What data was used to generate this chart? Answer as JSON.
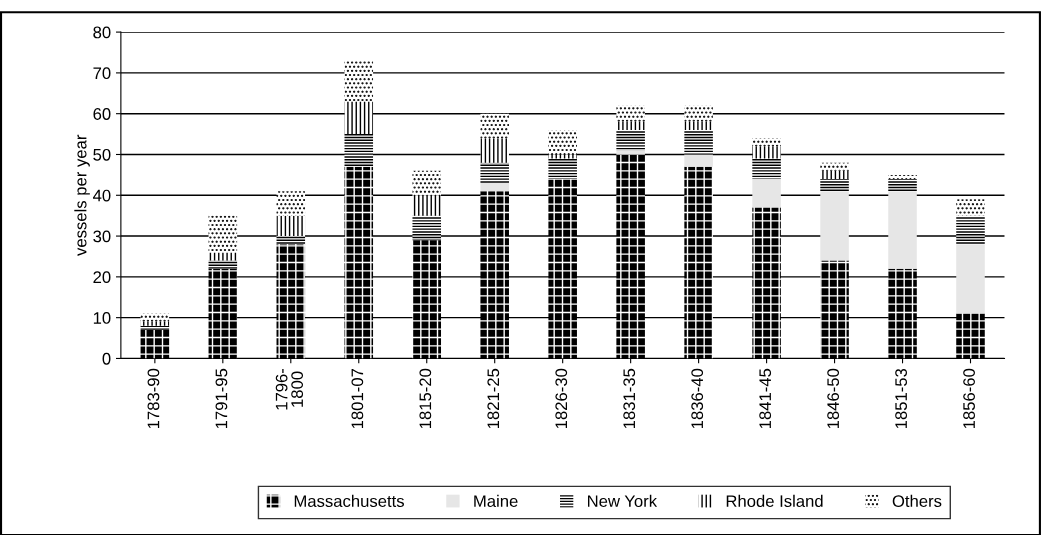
{
  "chart_data": {
    "type": "bar",
    "stacked": true,
    "ylabel": "vessels per year",
    "categories": [
      "1783-90",
      "1791-95",
      "1796-\n1800",
      "1801-07",
      "1815-20",
      "1821-25",
      "1826-30",
      "1831-35",
      "1836-40",
      "1841-45",
      "1846-50",
      "1851-53",
      "1856-60"
    ],
    "series": [
      {
        "name": "Massachusetts",
        "color": "#000000",
        "values": [
          7,
          22,
          28,
          47,
          29,
          41,
          44,
          50,
          47,
          37,
          24,
          22,
          11
        ]
      },
      {
        "name": "Maine",
        "color": "#e6e6e6",
        "values": [
          0,
          0,
          0,
          0,
          0,
          2,
          0,
          1,
          3,
          7,
          17,
          19,
          17
        ]
      },
      {
        "name": "New York",
        "color": "#ffffff",
        "values": [
          1,
          2,
          2,
          8,
          6,
          5,
          5,
          5,
          6,
          5,
          3,
          3,
          7
        ]
      },
      {
        "name": "Rhode Island",
        "color": "#ffffff",
        "values": [
          1,
          2,
          5,
          8,
          5,
          6,
          1,
          2,
          2,
          3,
          2,
          0,
          0
        ]
      },
      {
        "name": "Others",
        "color": "#ffffff",
        "values": [
          2,
          9,
          6,
          10,
          6,
          6,
          6,
          4,
          4,
          2,
          2,
          1,
          4
        ]
      }
    ],
    "ylim": [
      0,
      80
    ],
    "yticks": [
      0,
      10,
      20,
      30,
      40,
      50,
      60,
      70,
      80
    ],
    "grid": "y",
    "legend": "bottom"
  }
}
